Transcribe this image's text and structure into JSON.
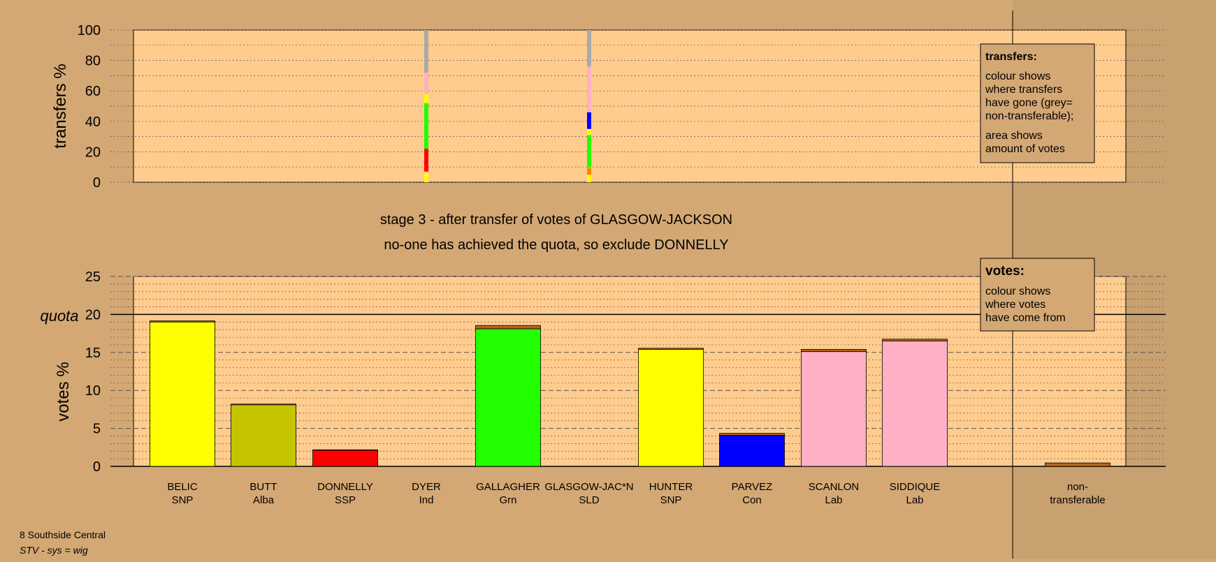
{
  "stage_title": "stage 3 - after transfer of votes of GLASGOW-JACKSON",
  "stage_subtitle": "no-one has achieved the quota, so exclude DONNELLY",
  "footer": {
    "ward": "8 Southside Central",
    "system": "STV - sys = wig"
  },
  "legend_transfers": {
    "title": "transfers:",
    "line1": "colour shows",
    "line2": "where transfers",
    "line3": "have gone (grey=",
    "line4": "non-transferable);",
    "line5": "area shows",
    "line6": "amount of votes"
  },
  "legend_votes": {
    "title": "votes:",
    "line1": "colour shows",
    "line2": "where votes",
    "line3": "have come from"
  },
  "colors": {
    "background": "#d4a874",
    "plot_bg": "#ffcc8e",
    "SNP": "#ffff00",
    "Alba": "#c4c400",
    "SSP": "#ff0000",
    "Grn": "#22ff00",
    "Con": "#0000ff",
    "Lab": "#ffb0c4",
    "SLD": "#ffa500",
    "Ind": "#ff7f00",
    "nontransferable": "#aaaaaa"
  },
  "chart_data": [
    {
      "type": "bar",
      "ylabel": "transfers %",
      "ylim": [
        0,
        100
      ],
      "yticks": [
        0,
        20,
        40,
        60,
        80,
        100
      ],
      "grid": true,
      "transfers": [
        {
          "column": 3,
          "segments": [
            {
              "party": "SNP",
              "from": 0,
              "to": 6
            },
            {
              "party": "SSP",
              "from": 7,
              "to": 22
            },
            {
              "party": "Grn",
              "from": 22,
              "to": 52
            },
            {
              "party": "SNP",
              "from": 52,
              "to": 58
            },
            {
              "party": "Lab",
              "from": 58,
              "to": 72
            },
            {
              "party": "nontransferable",
              "from": 72,
              "to": 100
            }
          ]
        },
        {
          "column": 5,
          "segments": [
            {
              "party": "SNP",
              "from": 0,
              "to": 5
            },
            {
              "party": "Ind",
              "from": 5,
              "to": 9
            },
            {
              "party": "Alba",
              "from": 9,
              "to": 10
            },
            {
              "party": "Grn",
              "from": 10,
              "to": 31
            },
            {
              "party": "SNP",
              "from": 31,
              "to": 35
            },
            {
              "party": "Con",
              "from": 35,
              "to": 46
            },
            {
              "party": "Lab",
              "from": 46,
              "to": 76
            },
            {
              "party": "nontransferable",
              "from": 76,
              "to": 100
            }
          ]
        }
      ]
    },
    {
      "type": "bar",
      "ylabel": "votes %",
      "ylim": [
        0,
        25
      ],
      "yticks": [
        0,
        5,
        10,
        15,
        20,
        25
      ],
      "quota": 20,
      "quota_label": "quota",
      "grid": true,
      "candidates": [
        {
          "name": "BELIC",
          "party": "SNP",
          "value": 19.0,
          "top": 0.15
        },
        {
          "name": "BUTT",
          "party": "Alba",
          "value": 8.1,
          "top": 0.1
        },
        {
          "name": "DONNELLY",
          "party": "SSP",
          "value": 2.1,
          "top": 0.08
        },
        {
          "name": "DYER",
          "party": "Ind",
          "value": 0,
          "top": 0
        },
        {
          "name": "GALLAGHER",
          "party": "Grn",
          "value": 18.1,
          "top": 0.45
        },
        {
          "name": "GLASGOW-JAC*N",
          "party": "SLD",
          "value": 0,
          "top": 0
        },
        {
          "name": "HUNTER",
          "party": "SNP",
          "value": 15.4,
          "top": 0.15
        },
        {
          "name": "PARVEZ",
          "party": "Con",
          "value": 4.1,
          "top": 0.25
        },
        {
          "name": "SCANLON",
          "party": "Lab",
          "value": 15.1,
          "top": 0.3
        },
        {
          "name": "SIDDIQUE",
          "party": "Lab",
          "value": 16.5,
          "top": 0.25
        }
      ],
      "nontransferable": {
        "line1": "non-",
        "line2": "transferable",
        "value": 0.45
      }
    }
  ]
}
